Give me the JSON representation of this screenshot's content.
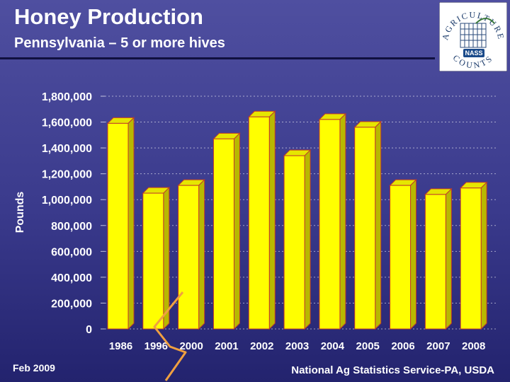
{
  "slide": {
    "title": "Honey Production",
    "subtitle": "Pennsylvania – 5 or more hives",
    "footer_left": "Feb 2009",
    "footer_right": "National Ag Statistics Service-PA, USDA"
  },
  "logo": {
    "top_text": "AGRICULTURE",
    "bottom_text": "COUNTS",
    "badge_text": "NASS"
  },
  "colors": {
    "background": "#3a3a8c",
    "bar_face": "#ffff00",
    "bar_side": "#b8b800",
    "bar_top": "#e6e600",
    "bar_outline": "#c0392b",
    "axis_text": "#ffffff",
    "gridline": "#ffffff",
    "squiggle": "#f0a040"
  },
  "chart_data": {
    "type": "bar",
    "title": "",
    "xlabel": "",
    "ylabel": "Pounds",
    "ylim": [
      0,
      1800000
    ],
    "yticks": [
      0,
      200000,
      400000,
      600000,
      800000,
      1000000,
      1200000,
      1400000,
      1600000,
      1800000
    ],
    "ytick_labels": [
      "0",
      "200,000",
      "400,000",
      "600,000",
      "800,000",
      "1,000,000",
      "1,200,000",
      "1,400,000",
      "1,600,000",
      "1,800,000"
    ],
    "categories": [
      "1986",
      "1996",
      "2000",
      "2001",
      "2002",
      "2003",
      "2004",
      "2005",
      "2006",
      "2007",
      "2008"
    ],
    "values": [
      1590000,
      1050000,
      1110000,
      1470000,
      1640000,
      1340000,
      1620000,
      1560000,
      1110000,
      1040000,
      1090000
    ],
    "grid": true,
    "style": "3d"
  }
}
